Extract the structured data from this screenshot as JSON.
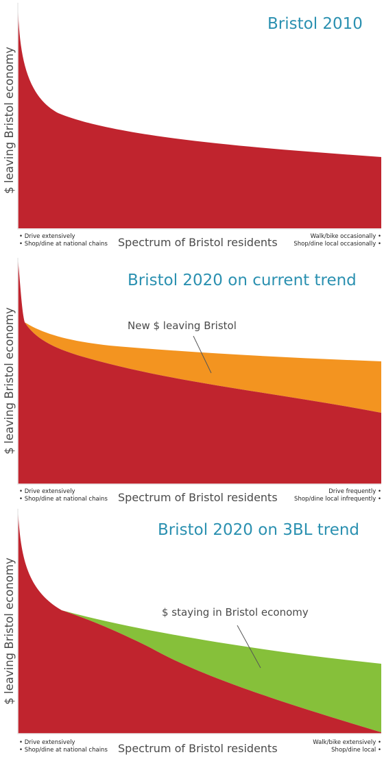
{
  "colors": {
    "leaving": "#c0242e",
    "new_leaving": "#f39420",
    "staying": "#86c03a",
    "title": "#2a90b0",
    "axis": "#e8e8e8"
  },
  "panels": [
    {
      "title": "Bristol 2010",
      "ylabel": "$ leaving Bristol economy",
      "xlabel": "Spectrum of Bristol residents",
      "left_bullets": [
        "• Drive extensively",
        "• Shop/dine at national chains"
      ],
      "right_bullets": [
        "Walk/bike occasionally •",
        "Shop/dine local occasionally •"
      ],
      "annotation": ""
    },
    {
      "title": "Bristol 2020 on current trend",
      "ylabel": "$ leaving Bristol economy",
      "xlabel": "Spectrum of Bristol residents",
      "left_bullets": [
        "• Drive extensively",
        "• Shop/dine at national chains"
      ],
      "right_bullets": [
        "Drive frequently •",
        "Shop/dine local infrequently •"
      ],
      "annotation": "New $ leaving Bristol"
    },
    {
      "title": "Bristol 2020 on 3BL trend",
      "ylabel": "$ leaving Bristol economy",
      "xlabel": "Spectrum of Bristol residents",
      "left_bullets": [
        "• Drive extensively",
        "• Shop/dine at national chains"
      ],
      "right_bullets": [
        "Walk/bike extensively •",
        "Shop/dine local •"
      ],
      "annotation": "$ staying in Bristol  economy"
    }
  ]
}
